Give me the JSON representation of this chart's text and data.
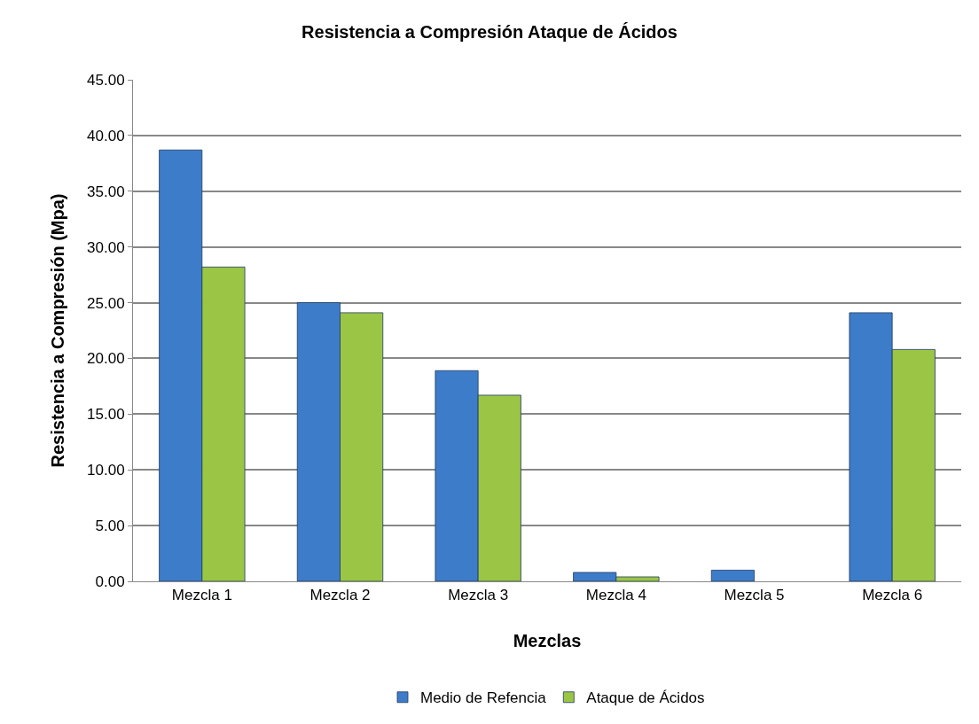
{
  "chart_data": {
    "type": "bar",
    "title": "Resistencia a Compresión Ataque de Ácidos",
    "xlabel": "Mezclas",
    "ylabel": "Resistencia a Compresión (Mpa)",
    "categories": [
      "Mezcla 1",
      "Mezcla 2",
      "Mezcla 3",
      "Mezcla 4",
      "Mezcla 5",
      "Mezcla 6"
    ],
    "series": [
      {
        "name": "Medio de Refencia",
        "color": "#3d7cc9",
        "values": [
          38.7,
          25.0,
          18.9,
          0.8,
          1.0,
          24.1
        ]
      },
      {
        "name": "Ataque de Ácidos",
        "color": "#9bc545",
        "values": [
          28.2,
          24.1,
          16.7,
          0.4,
          null,
          20.8
        ]
      }
    ],
    "ylim": [
      0,
      45
    ],
    "yticks": [
      {
        "value": 0,
        "label": "0.00"
      },
      {
        "value": 5,
        "label": "5.00"
      },
      {
        "value": 10,
        "label": "10.00"
      },
      {
        "value": 15,
        "label": "15.00"
      },
      {
        "value": 20,
        "label": "20.00"
      },
      {
        "value": 25,
        "label": "25.00"
      },
      {
        "value": 30,
        "label": "30.00"
      },
      {
        "value": 35,
        "label": "35.00"
      },
      {
        "value": 40,
        "label": "40.00"
      },
      {
        "value": 45,
        "label": "45.00"
      }
    ],
    "grid": "y",
    "legend": "bottom"
  }
}
